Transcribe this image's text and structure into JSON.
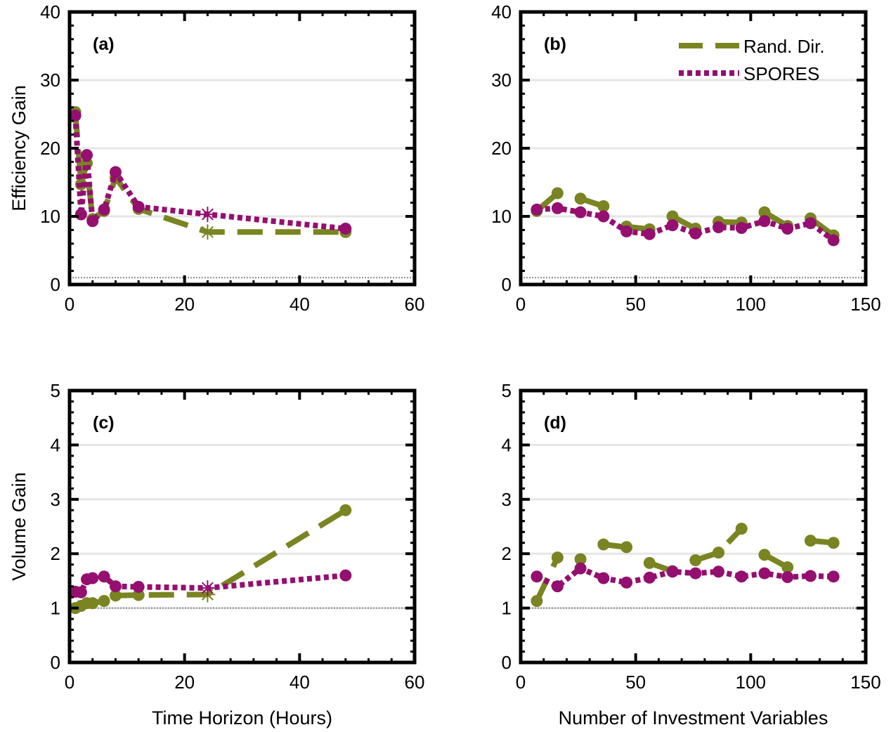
{
  "colors": {
    "rand": "#7a8422",
    "spores": "#940f6f",
    "grid": "#e6e6e6",
    "ref": "#8c8c8c"
  },
  "legend": {
    "rand_label": "Rand. Dir.",
    "spores_label": "SPORES"
  },
  "chart_data": [
    {
      "id": "a",
      "type": "line",
      "panel_label": "(a)",
      "xlabel": "",
      "ylabel": "Efficiency Gain",
      "xlim": [
        0,
        60
      ],
      "ylim": [
        0,
        40
      ],
      "xticks": [
        0,
        20,
        40,
        60
      ],
      "yticks": [
        0,
        10,
        20,
        30,
        40
      ],
      "grid": "horizontal",
      "reference_line_y": 1,
      "series": [
        {
          "name": "Rand. Dir.",
          "style": "dashed",
          "segments": [
            [
              [
                1,
                25.3
              ],
              [
                2,
                14.7
              ],
              [
                3,
                17.8
              ],
              [
                4,
                9.6
              ],
              [
                6,
                10.8
              ],
              [
                8,
                15.7
              ],
              [
                12,
                11.1
              ],
              [
                24,
                7.7
              ],
              [
                48,
                7.7
              ]
            ]
          ],
          "star_x": 24
        },
        {
          "name": "SPORES",
          "style": "dotted",
          "segments": [
            [
              [
                1,
                24.8
              ],
              [
                2,
                10.3
              ],
              [
                3,
                19.0
              ],
              [
                4,
                9.3
              ],
              [
                6,
                11.0
              ],
              [
                8,
                16.5
              ],
              [
                12,
                11.4
              ],
              [
                24,
                10.3
              ],
              [
                48,
                8.2
              ]
            ]
          ],
          "star_x": 24
        }
      ]
    },
    {
      "id": "b",
      "type": "line",
      "panel_label": "(b)",
      "xlabel": "",
      "ylabel": "",
      "xlim": [
        0,
        150
      ],
      "ylim": [
        0,
        40
      ],
      "xticks": [
        0,
        50,
        100,
        150
      ],
      "yticks": [
        0,
        10,
        20,
        30,
        40
      ],
      "grid": "horizontal",
      "reference_line_y": 1,
      "legend": "top-right",
      "series": [
        {
          "name": "Rand. Dir.",
          "style": "dashed",
          "segments": [
            [
              [
                7,
                10.8
              ],
              [
                16,
                13.4
              ]
            ],
            [
              [
                26,
                12.6
              ],
              [
                36,
                11.5
              ]
            ],
            [
              [
                46,
                8.5
              ],
              [
                56,
                8.1
              ]
            ],
            [
              [
                66,
                10.0
              ],
              [
                76,
                8.2
              ]
            ],
            [
              [
                86,
                9.2
              ],
              [
                96,
                9.1
              ]
            ],
            [
              [
                106,
                10.6
              ],
              [
                116,
                8.6
              ]
            ],
            [
              [
                126,
                9.7
              ],
              [
                136,
                7.2
              ]
            ]
          ]
        },
        {
          "name": "SPORES",
          "style": "dotted",
          "segments": [
            [
              [
                7,
                11.0
              ],
              [
                16,
                11.2
              ],
              [
                26,
                10.6
              ],
              [
                36,
                10.0
              ],
              [
                46,
                7.8
              ],
              [
                56,
                7.4
              ],
              [
                66,
                8.7
              ],
              [
                76,
                7.5
              ],
              [
                86,
                8.4
              ],
              [
                96,
                8.3
              ],
              [
                106,
                9.3
              ],
              [
                116,
                8.2
              ],
              [
                126,
                9.0
              ],
              [
                136,
                6.5
              ]
            ]
          ]
        }
      ]
    },
    {
      "id": "c",
      "type": "line",
      "panel_label": "(c)",
      "xlabel": "Time Horizon (Hours)",
      "ylabel": "Volume Gain",
      "xlim": [
        0,
        60
      ],
      "ylim": [
        0,
        5
      ],
      "xticks": [
        0,
        20,
        40,
        60
      ],
      "yticks": [
        0,
        1,
        2,
        3,
        4,
        5
      ],
      "grid": "horizontal",
      "reference_line_y": 1,
      "series": [
        {
          "name": "Rand. Dir.",
          "style": "dashed",
          "segments": [
            [
              [
                1,
                1.0
              ],
              [
                2,
                1.04
              ],
              [
                3,
                1.09
              ],
              [
                4,
                1.09
              ],
              [
                6,
                1.13
              ],
              [
                8,
                1.23
              ],
              [
                12,
                1.24
              ],
              [
                24,
                1.25
              ],
              [
                48,
                2.8
              ]
            ]
          ],
          "star_x": 24
        },
        {
          "name": "SPORES",
          "style": "dotted",
          "segments": [
            [
              [
                1,
                1.3
              ],
              [
                2,
                1.29
              ],
              [
                3,
                1.53
              ],
              [
                4,
                1.55
              ],
              [
                6,
                1.58
              ],
              [
                8,
                1.4
              ],
              [
                12,
                1.39
              ],
              [
                24,
                1.37
              ],
              [
                48,
                1.6
              ]
            ]
          ],
          "star_x": 24
        }
      ]
    },
    {
      "id": "d",
      "type": "line",
      "panel_label": "(d)",
      "xlabel": "Number of Investment Variables",
      "ylabel": "",
      "xlim": [
        0,
        150
      ],
      "ylim": [
        0,
        5
      ],
      "xticks": [
        0,
        50,
        100,
        150
      ],
      "yticks": [
        0,
        1,
        2,
        3,
        4,
        5
      ],
      "grid": "horizontal",
      "reference_line_y": 1,
      "series": [
        {
          "name": "Rand. Dir.",
          "style": "dashed",
          "segments": [
            [
              [
                7,
                1.13
              ],
              [
                16,
                1.93
              ]
            ],
            [
              [
                26,
                1.9
              ]
            ],
            [
              [
                36,
                2.17
              ],
              [
                46,
                2.12
              ]
            ],
            [
              [
                56,
                1.83
              ],
              [
                66,
                1.68
              ]
            ],
            [
              [
                76,
                1.88
              ],
              [
                86,
                2.02
              ],
              [
                96,
                2.46
              ]
            ],
            [
              [
                106,
                1.98
              ],
              [
                116,
                1.75
              ]
            ],
            [
              [
                126,
                2.24
              ],
              [
                136,
                2.2
              ]
            ]
          ]
        },
        {
          "name": "SPORES",
          "style": "dotted",
          "segments": [
            [
              [
                7,
                1.58
              ],
              [
                16,
                1.4
              ],
              [
                26,
                1.73
              ],
              [
                36,
                1.55
              ],
              [
                46,
                1.47
              ],
              [
                56,
                1.56
              ],
              [
                66,
                1.67
              ],
              [
                76,
                1.64
              ],
              [
                86,
                1.67
              ],
              [
                96,
                1.58
              ],
              [
                106,
                1.64
              ],
              [
                116,
                1.57
              ],
              [
                126,
                1.59
              ],
              [
                136,
                1.58
              ]
            ]
          ]
        }
      ]
    }
  ]
}
